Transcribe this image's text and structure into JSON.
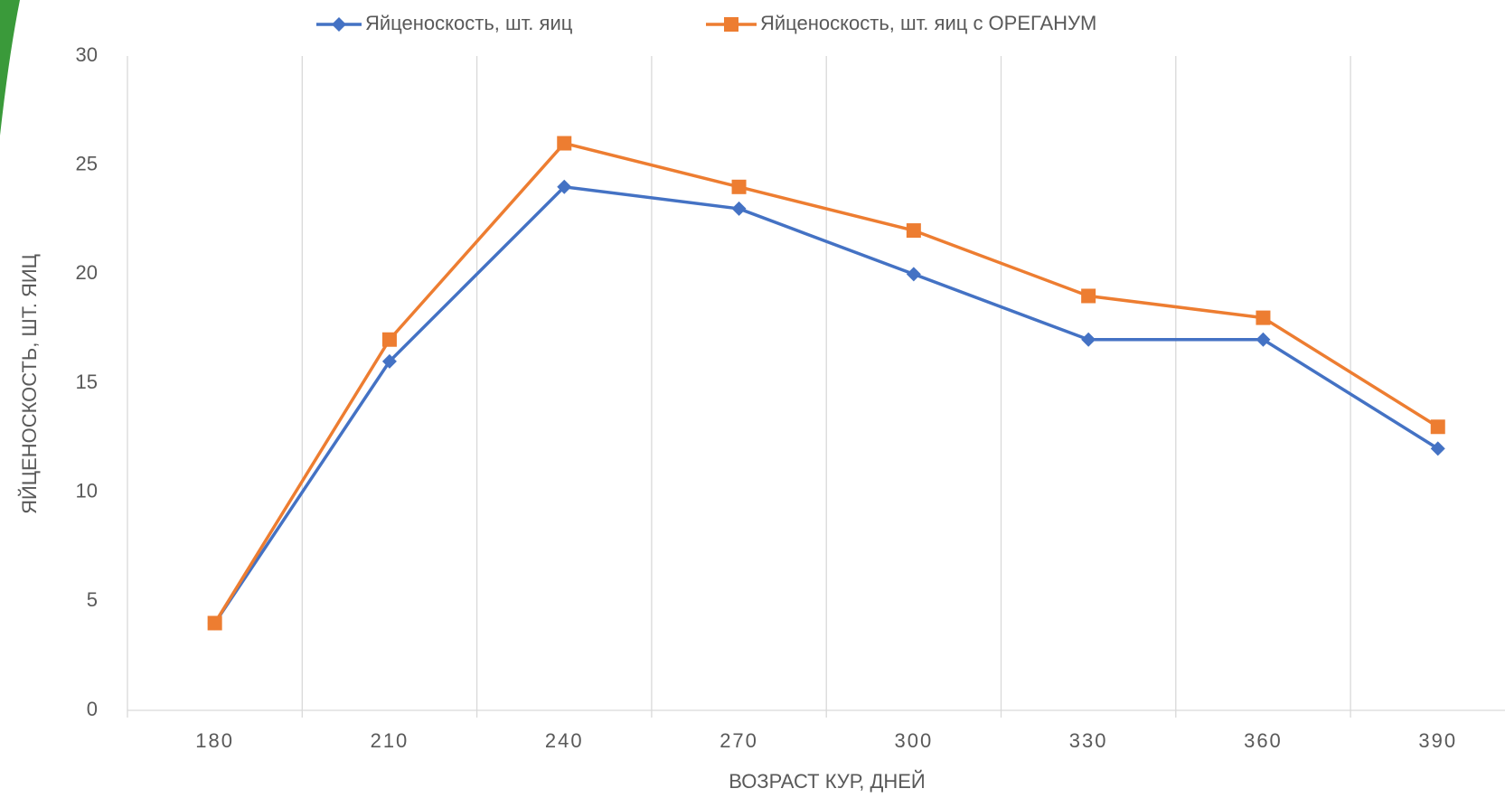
{
  "chart_data": {
    "type": "line",
    "xlabel": "ВОЗРАСТ КУР, ДНЕЙ",
    "ylabel": "ЯЙЦЕНОСКОСТЬ, ШТ. ЯИЦ",
    "categories": [
      "180",
      "210",
      "240",
      "270",
      "300",
      "330",
      "360",
      "390"
    ],
    "series": [
      {
        "name": "Яйценоскость, шт. яиц",
        "color": "#4472c4",
        "marker": "diamond",
        "values": [
          4,
          16,
          24,
          23,
          20,
          17,
          17,
          12
        ]
      },
      {
        "name": "Яйценоскость, шт. яиц с ОРЕГАНУМ",
        "color": "#ed7d31",
        "marker": "square",
        "values": [
          4,
          17,
          26,
          24,
          22,
          19,
          18,
          13
        ]
      }
    ],
    "ylim": [
      0,
      30
    ],
    "yticks": [
      0,
      5,
      10,
      15,
      20,
      25,
      30
    ],
    "legend": "top"
  }
}
